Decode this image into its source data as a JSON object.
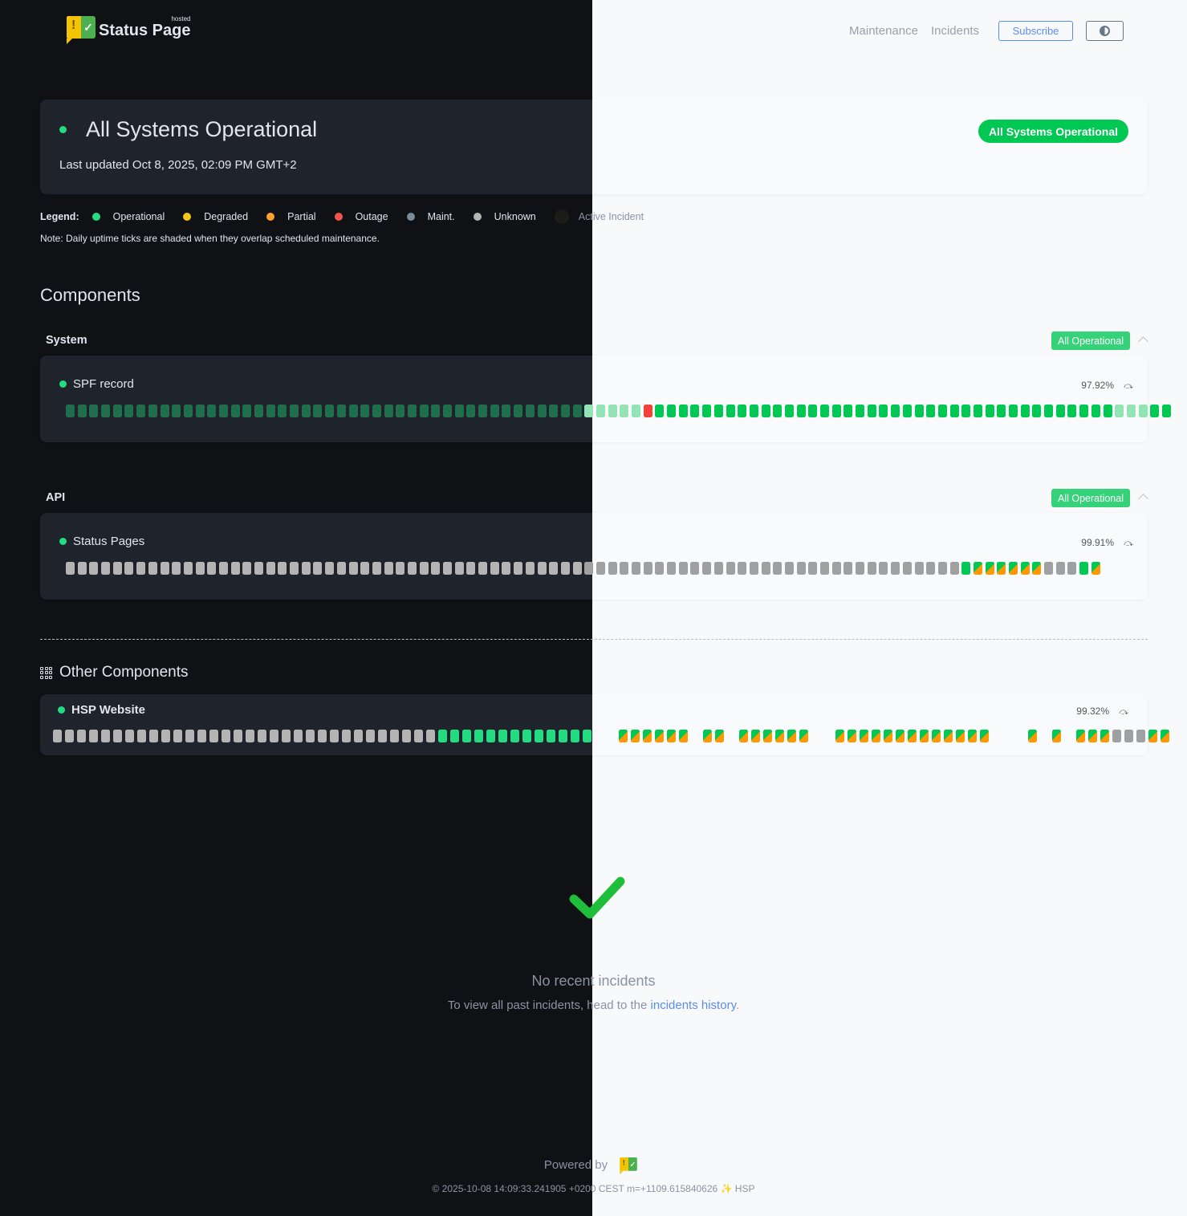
{
  "header": {
    "logo_text": "Status Page",
    "logo_sup": "hosted",
    "nav": [
      "Maintenance",
      "Incidents"
    ],
    "subscribe": "Subscribe",
    "theme_icon": "half-circle-contrast-icon"
  },
  "status": {
    "title": "All Systems Operational",
    "updated": "Last updated Oct 8, 2025, 02:09 PM GMT+2",
    "pill": "All Systems Operational"
  },
  "legend": {
    "label": "Legend:",
    "items": [
      {
        "label": "Operational",
        "color": "#22dd7f"
      },
      {
        "label": "Degraded",
        "color": "#f5c518"
      },
      {
        "label": "Partial",
        "color": "#ff9f2e"
      },
      {
        "label": "Outage",
        "color": "#f4554a"
      },
      {
        "label": "Maint.",
        "color": "#7b8a97"
      },
      {
        "label": "Unknown",
        "color": "#b4b4b4"
      },
      {
        "label": "Active Incident",
        "color": "#1e1c18"
      }
    ],
    "note": "Note: Daily uptime ticks are shaded when they overlap scheduled maintenance."
  },
  "components_title": "Components",
  "tick_legend": {
    "o": "operational",
    "m": "operational-maintenance-shaded",
    "r": "outage",
    "s": "operational-partial-split",
    "u": "unknown"
  },
  "groups": [
    {
      "name": "System",
      "badge": "All Operational",
      "components": [
        {
          "name": "SPF record",
          "uptime": "97.92%",
          "ticks": "mmmmmmmmmmmmmmmmmmmmmmmmmmmmmmmmmmmmmmmmmmmmmmmmmrooooooooooooooooooooooooooooooooooooooommmoo"
        }
      ]
    },
    {
      "name": "API",
      "badge": "All Operational",
      "components": [
        {
          "name": "Status Pages",
          "uptime": "99.91%",
          "ticks": "uuuuuuuuuuuuuuuuuuuuuuuuuuuuuuuuuuuuuuuuuuuuuuuuuuuuuuuuuuuuuuuuuuuuuuuuuuuuossssssuuuos"
        }
      ]
    }
  ],
  "other": {
    "title": "Other Components",
    "components": [
      {
        "name": "HSP Website",
        "uptime": "99.32%",
        "ticks": "uuuuuuuuuuuuuuuuuuuuuuuuuuuuuuuuoooooooooooooggssssssgssgssssssggsssssssssssssgggsgsgsssuuuss"
      }
    ]
  },
  "incidents": {
    "title": "No recent incidents",
    "text": "To view all past incidents, head to the ",
    "link": "incidents history",
    "after": "."
  },
  "footer": {
    "powered": "Powered by",
    "stamp": "© 2025-10-08 14:09:33.241905 +0200 CEST m=+1109.615840626 ✨ HSP"
  }
}
